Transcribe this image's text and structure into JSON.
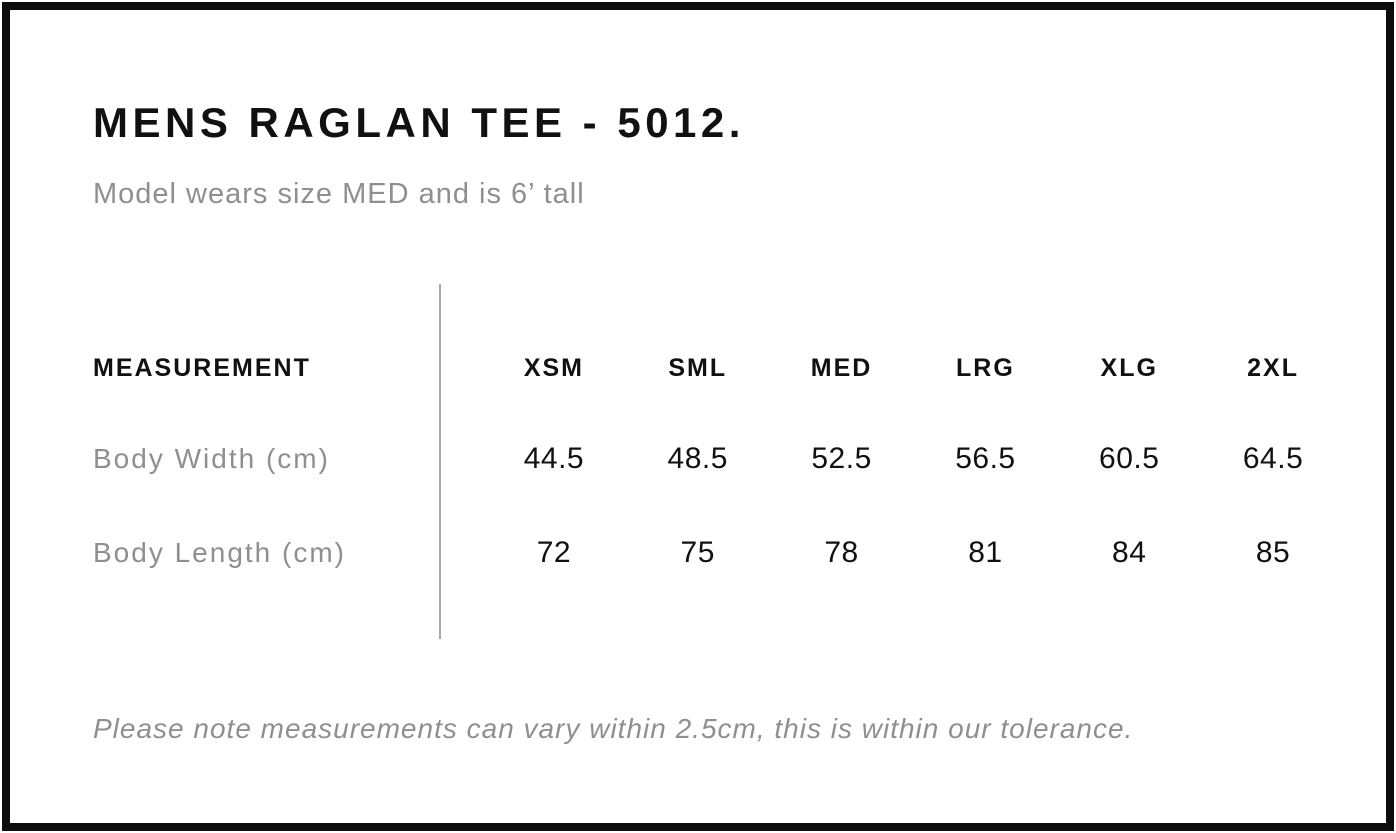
{
  "header": {
    "title": "MENS RAGLAN TEE - 5012.",
    "subtitle": "Model wears size MED and is 6’ tall"
  },
  "table": {
    "measurement_label": "MEASUREMENT",
    "size_headers": [
      "XSM",
      "SML",
      "MED",
      "LRG",
      "XLG",
      "2XL"
    ],
    "rows": [
      {
        "label": "Body Width (cm)",
        "values": [
          "44.5",
          "48.5",
          "52.5",
          "56.5",
          "60.5",
          "64.5"
        ]
      },
      {
        "label": "Body Length (cm)",
        "values": [
          "72",
          "75",
          "78",
          "81",
          "84",
          "85"
        ]
      }
    ]
  },
  "footer": {
    "note": "Please note measurements can vary within 2.5cm, this is within our tolerance."
  },
  "colors": {
    "text": "#111111",
    "muted": "#8f8f8f",
    "divider": "#a9a9a9",
    "frame": "#0d0d0d",
    "bg": "#ffffff"
  }
}
